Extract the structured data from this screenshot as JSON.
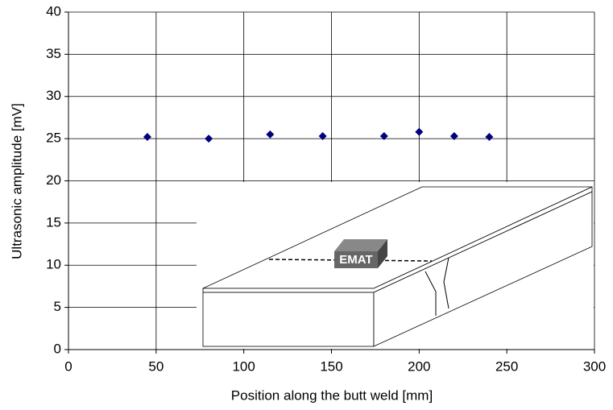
{
  "chart_data": {
    "type": "scatter",
    "xlabel": "Position along the butt weld [mm]",
    "ylabel": "Ultrasonic amplitude [mV]",
    "x": [
      45,
      80,
      115,
      145,
      180,
      200,
      220,
      240
    ],
    "series": [
      {
        "color": "#00007f",
        "values": [
          25.2,
          25.0,
          25.5,
          25.3,
          25.3,
          25.8,
          25.3,
          25.2
        ]
      }
    ],
    "xlim": [
      0,
      300
    ],
    "xticks": [
      0,
      50,
      100,
      150,
      200,
      250,
      300
    ],
    "ylim": [
      0,
      40
    ],
    "yticks": [
      0,
      5,
      10,
      15,
      20,
      25,
      30,
      35,
      40
    ],
    "grid": true,
    "inset_label": "EMAT"
  }
}
